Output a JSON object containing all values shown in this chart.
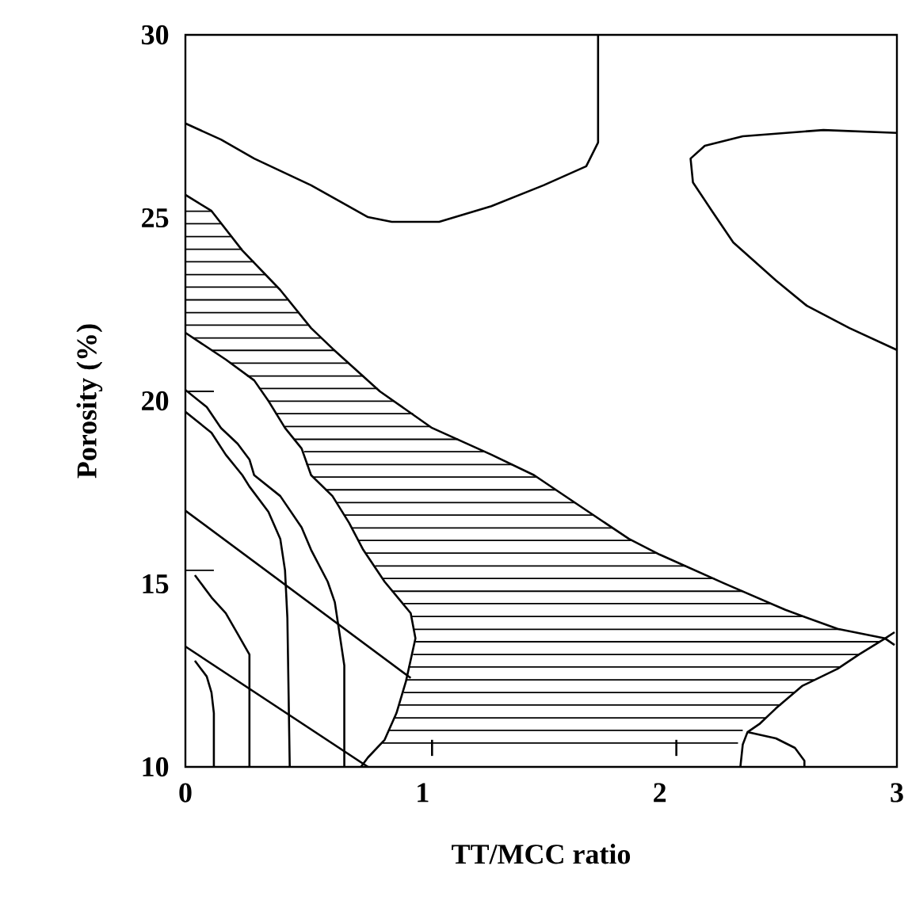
{
  "chart_data": {
    "type": "line",
    "xlabel": "TT/MCC ratio",
    "ylabel": "Porosity (%)",
    "xlim": [
      0,
      3
    ],
    "ylim": [
      10,
      30
    ],
    "xticks": [
      0,
      1,
      2,
      3
    ],
    "yticks": [
      10,
      15,
      20,
      25,
      30
    ],
    "marker": "none",
    "line_style": "solid",
    "series": [
      {
        "color": "#000000",
        "x": [
          0,
          0.11,
          0.24,
          0.4,
          0.53,
          0.62,
          0.82,
          1.04,
          1.29,
          1.47,
          1.64,
          1.87,
          2.0,
          2.27,
          2.53,
          2.75,
          2.95,
          2.99
        ],
        "values": [
          25.63,
          25.19,
          24.11,
          23.03,
          21.99,
          21.43,
          20.26,
          19.26,
          18.53,
          17.97,
          17.23,
          16.23,
          15.8,
          15.02,
          14.29,
          13.77,
          13.51,
          13.33
        ]
      },
      {
        "color": "#000000",
        "x": [
          2.34,
          2.35,
          2.37,
          2.42,
          2.49,
          2.6,
          2.75,
          2.84,
          2.95,
          2.99
        ],
        "values": [
          10,
          10.61,
          10.95,
          11.17,
          11.6,
          12.21,
          12.68,
          13.07,
          13.51,
          13.68
        ]
      },
      {
        "color": "#000000",
        "x": [
          0,
          0.17,
          0.29,
          0.35,
          0.42,
          0.49,
          0.53,
          0.62,
          0.69,
          0.75,
          0.84,
          0.95,
          0.97,
          0.93,
          0.89,
          0.84,
          0.77,
          0.74
        ],
        "values": [
          21.86,
          21.13,
          20.56,
          20.0,
          19.26,
          18.7,
          17.97,
          17.4,
          16.67,
          15.93,
          15.06,
          14.2,
          13.51,
          12.34,
          11.47,
          10.74,
          10.26,
          10
        ]
      },
      {
        "color": "#000000",
        "x": [
          0,
          0.15,
          0.29,
          0.53,
          0.77,
          0.87,
          1.07,
          1.29,
          1.51,
          1.69,
          1.74,
          1.74
        ],
        "values": [
          27.58,
          27.14,
          26.62,
          25.89,
          25.02,
          24.89,
          24.89,
          25.32,
          25.89,
          26.41,
          27.06,
          30
        ]
      },
      {
        "color": "#000000",
        "x": [
          3,
          2.69,
          2.35,
          2.19,
          2.13,
          2.14,
          2.22,
          2.31,
          2.49,
          2.62,
          2.8,
          3
        ],
        "values": [
          27.32,
          27.4,
          27.23,
          26.97,
          26.62,
          25.97,
          25.19,
          24.33,
          23.29,
          22.6,
          21.99,
          21.39
        ]
      },
      {
        "color": "#000000",
        "x": [
          2.37,
          2.49,
          2.57,
          2.61,
          2.61
        ],
        "values": [
          10.95,
          10.78,
          10.52,
          10.17,
          10
        ]
      },
      {
        "color": "#000000",
        "x": [
          2.07,
          2.07
        ],
        "values": [
          10.3,
          10.74
        ]
      },
      {
        "color": "#000000",
        "x": [
          1.04,
          1.04
        ],
        "values": [
          10.3,
          10.74
        ]
      },
      {
        "color": "#000000",
        "x": [
          0,
          0.09,
          0.15,
          0.22,
          0.27,
          0.29,
          0.4,
          0.49,
          0.53,
          0.6,
          0.63,
          0.65,
          0.67,
          0.67
        ],
        "values": [
          20.3,
          19.83,
          19.26,
          18.83,
          18.4,
          17.97,
          17.4,
          16.54,
          15.93,
          15.06,
          14.5,
          13.64,
          12.77,
          10
        ]
      },
      {
        "color": "#000000",
        "x": [
          0,
          0.11,
          0.17,
          0.24,
          0.27,
          0.35,
          0.4,
          0.42,
          0.43,
          0.44
        ],
        "values": [
          19.7,
          19.13,
          18.53,
          17.97,
          17.66,
          16.97,
          16.23,
          15.37,
          14.07,
          10
        ]
      },
      {
        "color": "#000000",
        "x": [
          0,
          0.12
        ],
        "values": [
          20.26,
          20.26
        ]
      },
      {
        "color": "#000000",
        "x": [
          0,
          0.95
        ],
        "values": [
          17.0,
          12.43
        ]
      },
      {
        "color": "#000000",
        "x": [
          0,
          0.77
        ],
        "values": [
          13.29,
          10
        ]
      },
      {
        "color": "#000000",
        "x": [
          0,
          0.12
        ],
        "values": [
          15.37,
          15.37
        ]
      },
      {
        "color": "#000000",
        "x": [
          0.04,
          0.11,
          0.17,
          0.22,
          0.27,
          0.27
        ],
        "values": [
          15.24,
          14.63,
          14.2,
          13.64,
          13.07,
          10
        ]
      },
      {
        "color": "#000000",
        "x": [
          0.04,
          0.09,
          0.11,
          0.12,
          0.12
        ],
        "values": [
          12.9,
          12.47,
          12.03,
          11.47,
          10
        ]
      },
      {
        "color": "#000000",
        "x": [
          0.83,
          2.33
        ],
        "values": [
          10.65,
          10.65
        ]
      },
      {
        "color": "#000000",
        "x": [
          0.86,
          2.35
        ],
        "values": [
          11.0,
          11.0
        ]
      },
      {
        "color": "#000000",
        "x": [
          0.88,
          2.45
        ],
        "values": [
          11.34,
          11.34
        ]
      },
      {
        "color": "#000000",
        "x": [
          0.9,
          2.51
        ],
        "values": [
          11.69,
          11.69
        ]
      },
      {
        "color": "#000000",
        "x": [
          0.92,
          2.57
        ],
        "values": [
          12.03,
          12.03
        ]
      },
      {
        "color": "#000000",
        "x": [
          0.93,
          2.65
        ],
        "values": [
          12.38,
          12.38
        ]
      },
      {
        "color": "#000000",
        "x": [
          0.94,
          2.76
        ],
        "values": [
          12.73,
          12.73
        ]
      },
      {
        "color": "#000000",
        "x": [
          0.96,
          2.84
        ],
        "values": [
          13.07,
          13.07
        ]
      },
      {
        "color": "#000000",
        "x": [
          0.97,
          2.93
        ],
        "values": [
          13.42,
          13.42
        ]
      },
      {
        "color": "#000000",
        "x": [
          0.96,
          2.76
        ],
        "values": [
          13.76,
          13.76
        ]
      },
      {
        "color": "#000000",
        "x": [
          0.95,
          2.61
        ],
        "values": [
          14.11,
          14.11
        ]
      },
      {
        "color": "#000000",
        "x": [
          0.92,
          2.47
        ],
        "values": [
          14.46,
          14.46
        ]
      },
      {
        "color": "#000000",
        "x": [
          0.87,
          2.35
        ],
        "values": [
          14.8,
          14.8
        ]
      },
      {
        "color": "#000000",
        "x": [
          0.83,
          2.23
        ],
        "values": [
          15.15,
          15.15
        ]
      },
      {
        "color": "#000000",
        "x": [
          0.8,
          2.11
        ],
        "values": [
          15.49,
          15.49
        ]
      },
      {
        "color": "#000000",
        "x": [
          0.76,
          1.99
        ],
        "values": [
          15.84,
          15.84
        ]
      },
      {
        "color": "#000000",
        "x": [
          0.73,
          1.88
        ],
        "values": [
          16.19,
          16.19
        ]
      },
      {
        "color": "#000000",
        "x": [
          0.7,
          1.8
        ],
        "values": [
          16.53,
          16.53
        ]
      },
      {
        "color": "#000000",
        "x": [
          0.67,
          1.72
        ],
        "values": [
          16.88,
          16.88
        ]
      },
      {
        "color": "#000000",
        "x": [
          0.64,
          1.64
        ],
        "values": [
          17.22,
          17.22
        ]
      },
      {
        "color": "#000000",
        "x": [
          0.59,
          1.56
        ],
        "values": [
          17.57,
          17.57
        ]
      },
      {
        "color": "#000000",
        "x": [
          0.54,
          1.48
        ],
        "values": [
          17.92,
          17.92
        ]
      },
      {
        "color": "#000000",
        "x": [
          0.51,
          1.38
        ],
        "values": [
          18.26,
          18.26
        ]
      },
      {
        "color": "#000000",
        "x": [
          0.5,
          1.26
        ],
        "values": [
          18.61,
          18.61
        ]
      },
      {
        "color": "#000000",
        "x": [
          0.46,
          1.15
        ],
        "values": [
          18.95,
          18.95
        ]
      },
      {
        "color": "#000000",
        "x": [
          0.42,
          1.03
        ],
        "values": [
          19.3,
          19.3
        ]
      },
      {
        "color": "#000000",
        "x": [
          0.38,
          0.96
        ],
        "values": [
          19.65,
          19.65
        ]
      },
      {
        "color": "#000000",
        "x": [
          0.35,
          0.88
        ],
        "values": [
          19.99,
          19.99
        ]
      },
      {
        "color": "#000000",
        "x": [
          0.31,
          0.81
        ],
        "values": [
          20.34,
          20.34
        ]
      },
      {
        "color": "#000000",
        "x": [
          0.26,
          0.75
        ],
        "values": [
          20.68,
          20.68
        ]
      },
      {
        "color": "#000000",
        "x": [
          0.19,
          0.69
        ],
        "values": [
          21.03,
          21.03
        ]
      },
      {
        "color": "#000000",
        "x": [
          0.11,
          0.63
        ],
        "values": [
          21.38,
          21.38
        ]
      },
      {
        "color": "#000000",
        "x": [
          0.03,
          0.57
        ],
        "values": [
          21.72,
          21.72
        ]
      },
      {
        "color": "#000000",
        "x": [
          0,
          0.52
        ],
        "values": [
          22.07,
          22.07
        ]
      },
      {
        "color": "#000000",
        "x": [
          0,
          0.48
        ],
        "values": [
          22.41,
          22.41
        ]
      },
      {
        "color": "#000000",
        "x": [
          0,
          0.43
        ],
        "values": [
          22.76,
          22.76
        ]
      },
      {
        "color": "#000000",
        "x": [
          0,
          0.39
        ],
        "values": [
          23.11,
          23.11
        ]
      },
      {
        "color": "#000000",
        "x": [
          0,
          0.34
        ],
        "values": [
          23.45,
          23.45
        ]
      },
      {
        "color": "#000000",
        "x": [
          0,
          0.29
        ],
        "values": [
          23.8,
          23.8
        ]
      },
      {
        "color": "#000000",
        "x": [
          0,
          0.24
        ],
        "values": [
          24.14,
          24.14
        ]
      },
      {
        "color": "#000000",
        "x": [
          0,
          0.19
        ],
        "values": [
          24.49,
          24.49
        ]
      },
      {
        "color": "#000000",
        "x": [
          0,
          0.15
        ],
        "values": [
          24.84,
          24.84
        ]
      },
      {
        "color": "#000000",
        "x": [
          0,
          0.11
        ],
        "values": [
          25.18,
          25.18
        ]
      }
    ]
  }
}
